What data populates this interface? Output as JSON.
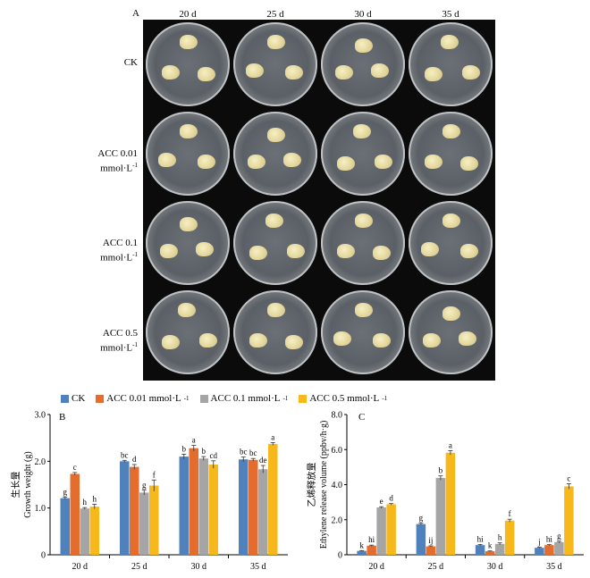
{
  "figure": {
    "panel_a_label": "A",
    "panel_b_label": "B",
    "panel_c_label": "C",
    "columns": [
      "20 d",
      "25 d",
      "30 d",
      "35 d"
    ],
    "rows": [
      {
        "line1": "CK",
        "line2": ""
      },
      {
        "line1": "ACC 0.01",
        "line2": "mmol·L",
        "sup": "-1"
      },
      {
        "line1": "ACC 0.1",
        "line2": "mmol·L",
        "sup": "-1"
      },
      {
        "line1": "ACC 0.5",
        "line2": "mmol·L",
        "sup": "-1"
      }
    ]
  },
  "legend": [
    {
      "name": "CK",
      "sup": "",
      "color": "#4f81bd"
    },
    {
      "name": "ACC 0.01 mmol·L",
      "sup": "-1",
      "color": "#e46c2c"
    },
    {
      "name": "ACC 0.1 mmol·L",
      "sup": "-1",
      "color": "#a5a5a5"
    },
    {
      "name": "ACC 0.5 mmol·L",
      "sup": "-1",
      "color": "#f6b81a"
    }
  ],
  "chart_data": [
    {
      "type": "bar",
      "panel": "B",
      "categories": [
        "20 d",
        "25 d",
        "30 d",
        "35 d"
      ],
      "ylabel_cn": "生长量",
      "ylabel": "Growth weight (g)",
      "ylim": [
        0,
        3.0
      ],
      "yticks": [
        "0",
        "1.0",
        "2.0",
        "3.0"
      ],
      "ytick_values": [
        0,
        1.0,
        2.0,
        3.0
      ],
      "series": [
        {
          "name": "CK",
          "values": [
            1.21,
            2.0,
            2.1,
            2.04
          ],
          "errors": [
            0.02,
            0.02,
            0.05,
            0.05
          ],
          "letters": [
            "g",
            "bc",
            "b",
            "bc"
          ]
        },
        {
          "name": "ACC 0.01 mmol·L-1",
          "values": [
            1.73,
            1.88,
            2.28,
            2.03
          ],
          "errors": [
            0.03,
            0.05,
            0.06,
            0.03
          ],
          "letters": [
            "c",
            "d",
            "a",
            "bc"
          ]
        },
        {
          "name": "ACC 0.1 mmol·L-1",
          "values": [
            0.99,
            1.33,
            2.06,
            1.83
          ],
          "errors": [
            0.02,
            0.05,
            0.04,
            0.08
          ],
          "letters": [
            "h",
            "g",
            "b",
            "de"
          ]
        },
        {
          "name": "ACC 0.5 mmol·L-1",
          "values": [
            1.03,
            1.48,
            1.93,
            2.37
          ],
          "errors": [
            0.05,
            0.12,
            0.08,
            0.03
          ],
          "letters": [
            "h",
            "f",
            "cd",
            "a"
          ]
        }
      ]
    },
    {
      "type": "bar",
      "panel": "C",
      "categories": [
        "20 d",
        "25 d",
        "30 d",
        "35 d"
      ],
      "ylabel_cn": "乙烯释放量",
      "ylabel": "Ethylene release volume (ppbv/h·g)",
      "ylim": [
        0,
        8.0
      ],
      "yticks": [
        "0",
        "2.0",
        "4.0",
        "6.0",
        "8.0"
      ],
      "ytick_values": [
        0,
        2.0,
        4.0,
        6.0,
        8.0
      ],
      "series": [
        {
          "name": "CK",
          "values": [
            0.22,
            1.75,
            0.55,
            0.4
          ],
          "errors": [
            0.02,
            0.05,
            0.04,
            0.03
          ],
          "letters": [
            "k",
            "g",
            "hi",
            "j"
          ]
        },
        {
          "name": "ACC 0.01 mmol·L-1",
          "values": [
            0.52,
            0.48,
            0.2,
            0.55
          ],
          "errors": [
            0.03,
            0.03,
            0.02,
            0.03
          ],
          "letters": [
            "hi",
            "ij",
            "k",
            "hi"
          ]
        },
        {
          "name": "ACC 0.1 mmol·L-1",
          "values": [
            2.7,
            4.38,
            0.62,
            0.72
          ],
          "errors": [
            0.04,
            0.12,
            0.06,
            0.04
          ],
          "letters": [
            "e",
            "b",
            "h",
            "g"
          ]
        },
        {
          "name": "ACC 0.5 mmol·L-1",
          "values": [
            2.88,
            5.82,
            1.95,
            3.9
          ],
          "errors": [
            0.04,
            0.12,
            0.08,
            0.15
          ],
          "letters": [
            "d",
            "a",
            "f",
            "c"
          ]
        }
      ]
    }
  ]
}
